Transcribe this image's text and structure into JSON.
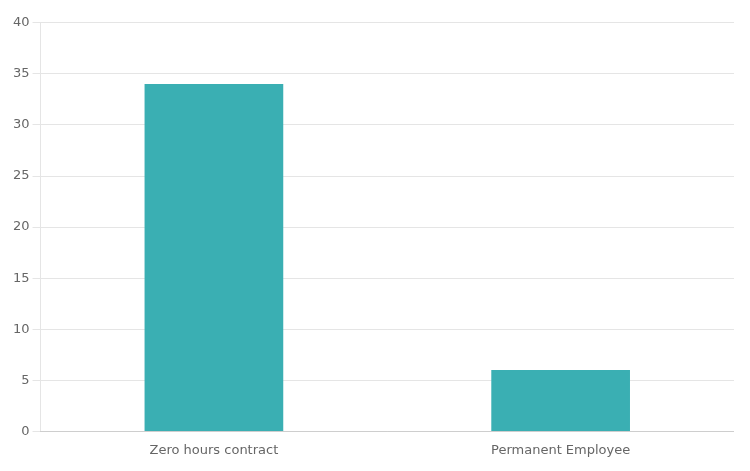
{
  "chart_data": {
    "type": "bar",
    "categories": [
      "Zero hours contract",
      "Permanent Employee"
    ],
    "values": [
      34,
      6
    ],
    "color": "#3AAFB3",
    "ylim": [
      0,
      40
    ],
    "yticks": [
      0,
      5,
      10,
      15,
      20,
      25,
      30,
      35,
      40
    ],
    "grid": true
  }
}
